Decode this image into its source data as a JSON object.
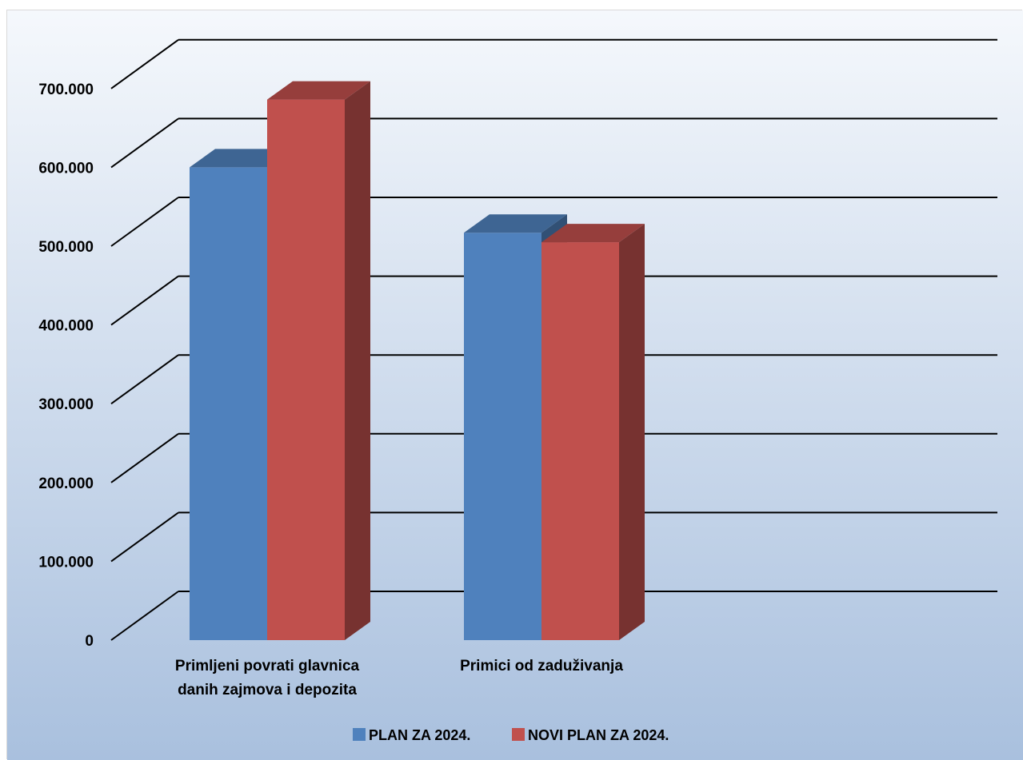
{
  "chart_data": {
    "type": "bar",
    "style": "3d-clustered-column",
    "categories": [
      [
        "Primljeni povrati glavnica",
        "danih zajmova i depozita"
      ],
      [
        "Primici od zaduživanja"
      ]
    ],
    "series": [
      {
        "name": "PLAN ZA 2024.",
        "values": [
          600000,
          517000
        ],
        "color": "#4F81BD"
      },
      {
        "name": "NOVI PLAN ZA 2024.",
        "values": [
          686000,
          505000
        ],
        "color": "#C0504D"
      }
    ],
    "ylim": [
      0,
      700000
    ],
    "ytick_values": [
      0,
      100000,
      200000,
      300000,
      400000,
      500000,
      600000,
      700000
    ],
    "ytick_labels": [
      "0",
      "100.000",
      "200.000",
      "300.000",
      "400.000",
      "500.000",
      "600.000",
      "700.000"
    ],
    "grid": true,
    "legend_position": "bottom",
    "background": "gradient light-blue"
  }
}
